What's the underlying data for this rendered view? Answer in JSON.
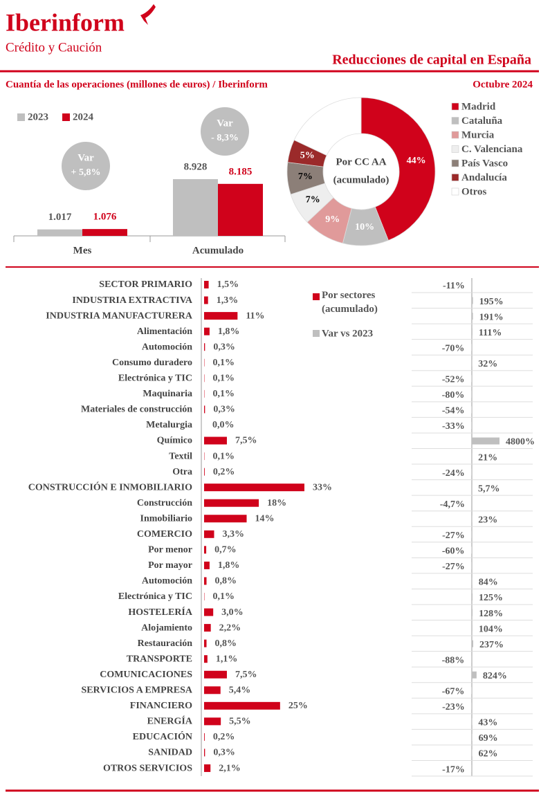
{
  "header": {
    "logo": "Iberinform",
    "tagline": "Crédito y Caución",
    "title": "Reducciones de capital en España",
    "subtitle": "Cuantía de las operaciones (millones de euros) / Iberinform",
    "date": "Octubre 2024"
  },
  "chart_data": [
    {
      "type": "bar",
      "categories": [
        "Mes",
        "Acumulado"
      ],
      "series": [
        {
          "name": "2023",
          "color": "#bfbfbf",
          "values": [
            1017,
            8928
          ],
          "value_labels": [
            "1.017",
            "8.928"
          ]
        },
        {
          "name": "2024",
          "color": "#d0021b",
          "values": [
            1076,
            8185
          ],
          "value_labels": [
            "1.076",
            "8.185"
          ]
        }
      ],
      "annotations": [
        {
          "label": "Var",
          "text": "+ 5,8%"
        },
        {
          "label": "Var",
          "text": "- 8,3%"
        }
      ]
    },
    {
      "type": "pie",
      "title": "Por CC AA",
      "subtitle": "(acumulado)",
      "categories": [
        "Madrid",
        "Cataluña",
        "Murcia",
        "C. Valenciana",
        "País Vasco",
        "Andalucía",
        "Otros"
      ],
      "values": [
        44,
        10,
        9,
        7,
        7,
        5,
        18
      ],
      "value_labels": [
        "44%",
        "10%",
        "9%",
        "7%",
        "7%",
        "5%",
        null
      ],
      "colors": [
        "#d0021b",
        "#bfbfbf",
        "#e09a9a",
        "#eeeeee",
        "#8c7f78",
        "#9b2a2a",
        "#ffffff"
      ],
      "label_colors": [
        "#ffffff",
        "#ffffff",
        "#ffffff",
        "#000000",
        "#000000",
        "#ffffff",
        "#000000"
      ]
    },
    {
      "type": "bar",
      "orientation": "horizontal",
      "categories": [
        "SECTOR PRIMARIO",
        "INDUSTRIA EXTRACTIVA",
        "INDUSTRIA MANUFACTURERA",
        "Alimentación",
        "Automoción",
        "Consumo duradero",
        "Electrónica y TIC",
        "Maquinaria",
        "Materiales de construcción",
        "Metalurgia",
        "Químico",
        "Textil",
        "Otra",
        "CONSTRUCCIÓN E INMOBILIARIO",
        "Construcción",
        "Inmobiliario",
        "COMERCIO",
        "Por menor",
        "Por mayor",
        "Automoción",
        "Electrónica y TIC",
        "HOSTELERÍA",
        "Alojamiento",
        "Restauración",
        "TRANSPORTE",
        "COMUNICACIONES",
        "SERVICIOS A EMPRESA",
        "FINANCIERO",
        "ENERGÍA",
        "EDUCACIÓN",
        "SANIDAD",
        "OTROS SERVICIOS"
      ],
      "series": [
        {
          "name": "Por sectores (acumulado)",
          "color": "#d0021b",
          "values": [
            1.5,
            1.3,
            11,
            1.8,
            0.3,
            0.1,
            0.1,
            0.1,
            0.3,
            0.0,
            7.5,
            0.1,
            0.2,
            33,
            18,
            14,
            3.3,
            0.7,
            1.8,
            0.8,
            0.1,
            3.0,
            2.2,
            0.8,
            1.1,
            7.5,
            5.4,
            25,
            5.5,
            0.2,
            0.3,
            2.1
          ],
          "value_labels": [
            "1,5%",
            "1,3%",
            "11%",
            "1,8%",
            "0,3%",
            "0,1%",
            "0,1%",
            "0,1%",
            "0,3%",
            "0,0%",
            "7,5%",
            "0,1%",
            "0,2%",
            "33%",
            "18%",
            "14%",
            "3,3%",
            "0,7%",
            "1,8%",
            "0,8%",
            "0,1%",
            "3,0%",
            "2,2%",
            "0,8%",
            "1,1%",
            "7,5%",
            "5,4%",
            "25%",
            "5,5%",
            "0,2%",
            "0,3%",
            "2,1%"
          ]
        },
        {
          "name": "Var vs 2023",
          "color": "#bfbfbf",
          "values": [
            -11,
            195,
            191,
            111,
            -70,
            32,
            -52,
            -80,
            -54,
            -33,
            4800,
            21,
            -24,
            5.7,
            -4.7,
            23,
            -27,
            -60,
            -27,
            84,
            125,
            128,
            104,
            237,
            -88,
            824,
            -67,
            -23,
            43,
            69,
            62,
            -17
          ],
          "value_labels": [
            "-11%",
            "195%",
            "191%",
            "111%",
            "-70%",
            "32%",
            "-52%",
            "-80%",
            "-54%",
            "-33%",
            "4800%",
            "21%",
            "-24%",
            "5,7%",
            "-4,7%",
            "23%",
            "-27%",
            "-60%",
            "-27%",
            "84%",
            "125%",
            "128%",
            "104%",
            "237%",
            "-88%",
            "824%",
            "-67%",
            "-23%",
            "43%",
            "69%",
            "62%",
            "-17%"
          ]
        }
      ]
    }
  ]
}
